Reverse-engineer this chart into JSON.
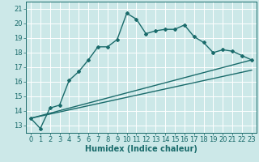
{
  "title": "",
  "xlabel": "Humidex (Indice chaleur)",
  "ylabel": "",
  "bg_color": "#cce8e8",
  "grid_color": "#ffffff",
  "line_color": "#1a6b6b",
  "xlim": [
    -0.5,
    23.5
  ],
  "ylim": [
    12.5,
    21.5
  ],
  "yticks": [
    13,
    14,
    15,
    16,
    17,
    18,
    19,
    20,
    21
  ],
  "xticks": [
    0,
    1,
    2,
    3,
    4,
    5,
    6,
    7,
    8,
    9,
    10,
    11,
    12,
    13,
    14,
    15,
    16,
    17,
    18,
    19,
    20,
    21,
    22,
    23
  ],
  "line1_x": [
    0,
    1,
    2,
    3,
    4,
    5,
    6,
    7,
    8,
    9,
    10,
    11,
    12,
    13,
    14,
    15,
    16,
    17,
    18,
    19,
    20,
    21,
    22,
    23
  ],
  "line1_y": [
    13.5,
    12.8,
    14.2,
    14.4,
    16.1,
    16.7,
    17.5,
    18.4,
    18.4,
    18.9,
    20.7,
    20.3,
    19.3,
    19.5,
    19.6,
    19.6,
    19.9,
    19.1,
    18.7,
    18.0,
    18.2,
    18.1,
    17.8,
    17.5
  ],
  "line2_x": [
    0,
    23
  ],
  "line2_y": [
    13.5,
    16.8
  ],
  "line3_x": [
    0,
    23
  ],
  "line3_y": [
    13.5,
    17.5
  ],
  "marker": "D",
  "markersize": 2.0,
  "linewidth": 1.0,
  "fontsize_xlabel": 7,
  "fontsize_ticks": 6
}
